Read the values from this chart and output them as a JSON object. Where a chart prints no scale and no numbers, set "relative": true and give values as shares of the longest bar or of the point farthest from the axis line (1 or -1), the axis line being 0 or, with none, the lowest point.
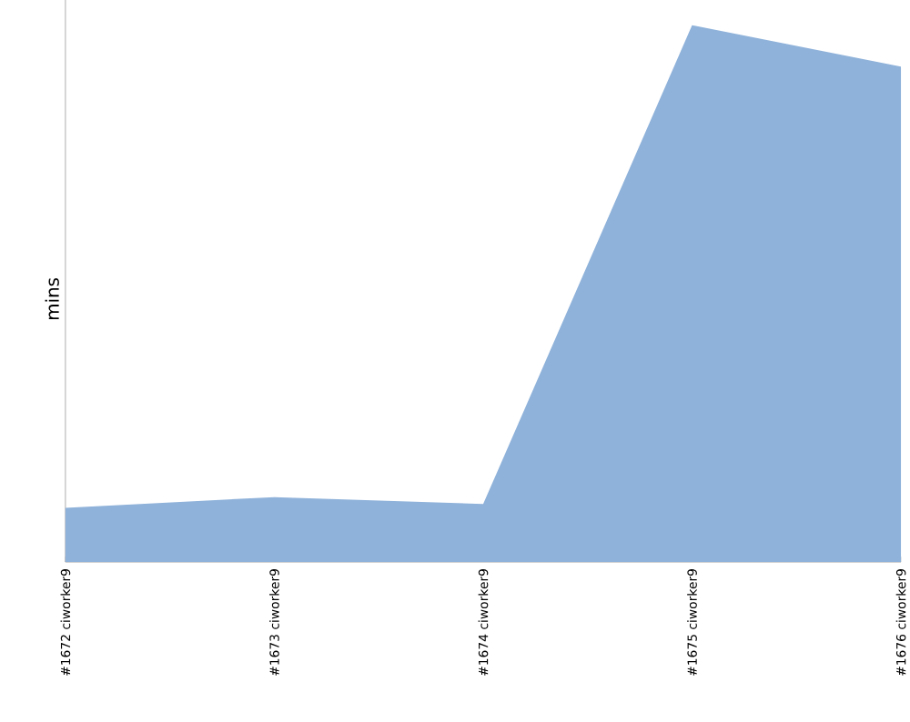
{
  "chart_data": {
    "type": "area",
    "relative": true,
    "ylabel": "mins",
    "categories": [
      "#1672 ciworker9",
      "#1673 ciworker9",
      "#1674 ciworker9",
      "#1675 ciworker9",
      "#1676 ciworker9"
    ],
    "series": [
      {
        "color": "#8fb2da",
        "values": [
          0.101,
          0.121,
          0.108,
          1.0,
          0.923
        ]
      }
    ]
  }
}
